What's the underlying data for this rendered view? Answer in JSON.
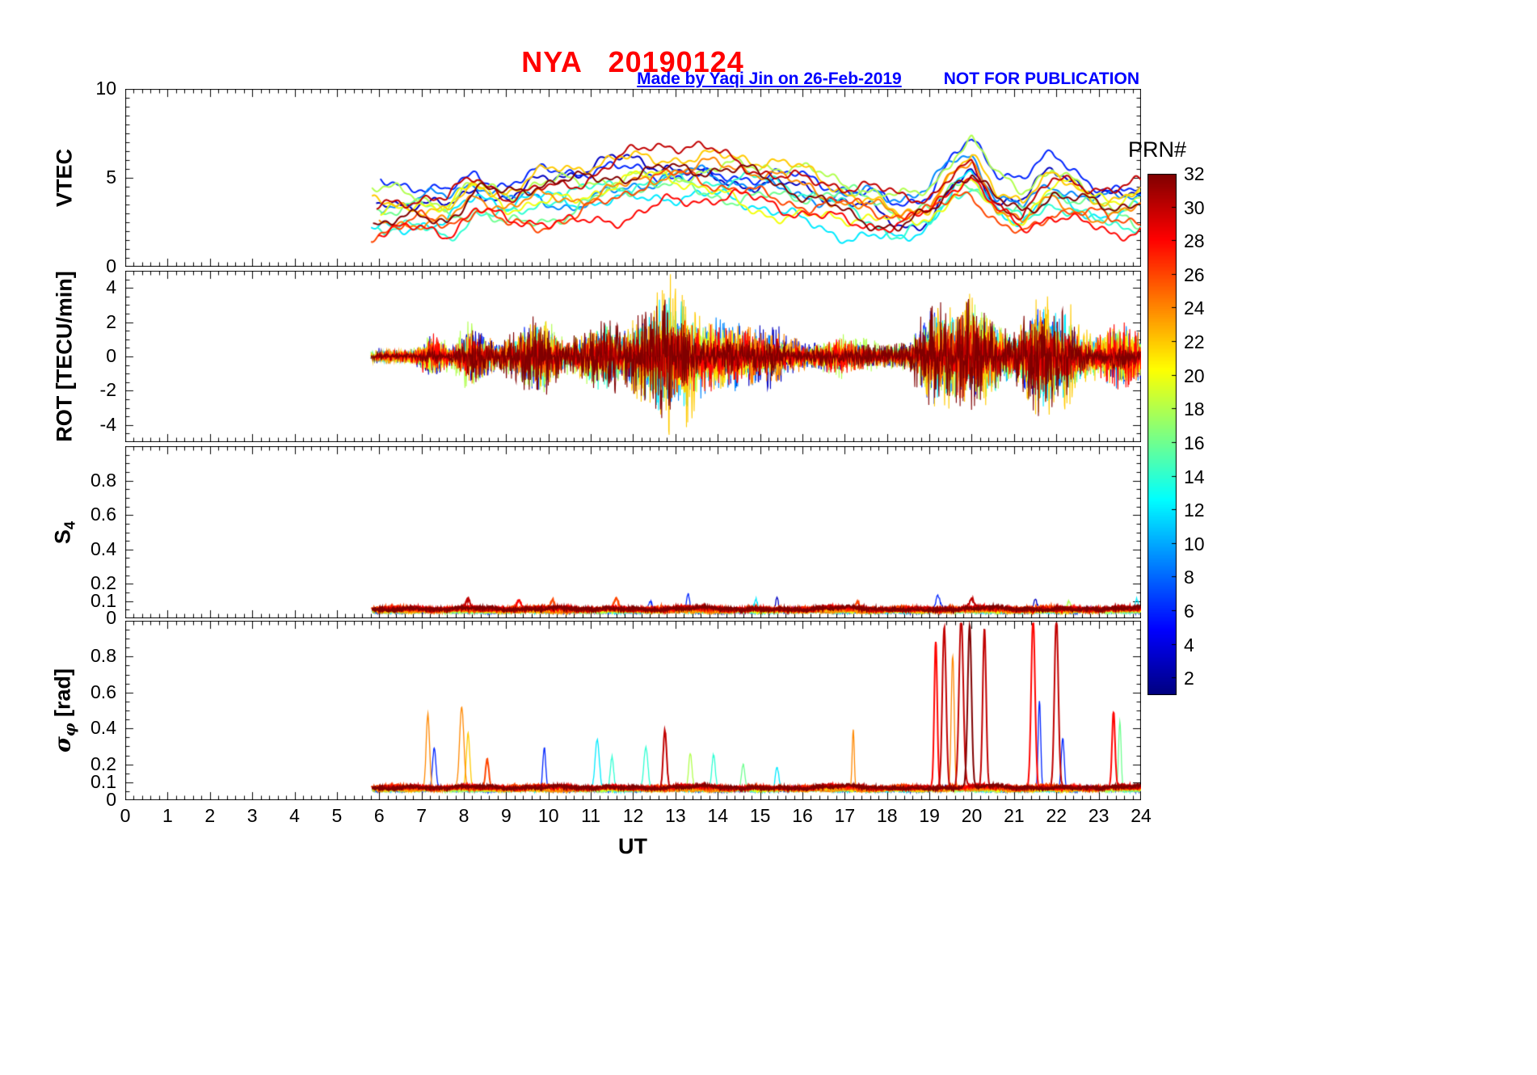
{
  "figure": {
    "title": "NYA   20190124",
    "credit": "Made by Yaqi Jin on 26-Feb-2019",
    "watermark": "NOT FOR PUBLICATION",
    "title_color": "#FF0000",
    "annotation_color": "#0000FF",
    "background_color": "#FFFFFF"
  },
  "xaxis": {
    "label": "UT",
    "min": 0,
    "max": 24,
    "ticks": [
      0,
      1,
      2,
      3,
      4,
      5,
      6,
      7,
      8,
      9,
      10,
      11,
      12,
      13,
      14,
      15,
      16,
      17,
      18,
      19,
      20,
      21,
      22,
      23,
      24
    ]
  },
  "colorbar": {
    "label": "PRN#",
    "colormap": "jet",
    "min": 1,
    "max": 32,
    "ticks": [
      2,
      4,
      6,
      8,
      10,
      12,
      14,
      16,
      18,
      20,
      22,
      24,
      26,
      28,
      30,
      32
    ]
  },
  "series_prns": [
    3,
    6,
    9,
    12,
    14,
    16,
    18,
    20,
    22,
    24,
    26,
    28,
    30,
    32
  ],
  "data_time_span": [
    5.8,
    24
  ],
  "chart_data": [
    {
      "panel": "VTEC",
      "type": "line",
      "ylabel": "VTEC",
      "ylim": [
        0,
        10
      ],
      "yticks": [
        0,
        5,
        10
      ],
      "x_span": [
        5.8,
        24
      ],
      "series_spread": 1.1,
      "mean_envelope": [
        [
          5.8,
          2.9
        ],
        [
          7,
          3.3
        ],
        [
          7.6,
          3.0
        ],
        [
          8.3,
          4.1
        ],
        [
          9,
          3.4
        ],
        [
          9.8,
          3.8
        ],
        [
          10.6,
          4.0
        ],
        [
          11.4,
          4.6
        ],
        [
          12.2,
          4.9
        ],
        [
          12.8,
          5.1
        ],
        [
          13.5,
          4.9
        ],
        [
          14.3,
          4.6
        ],
        [
          15.2,
          4.3
        ],
        [
          16,
          3.9
        ],
        [
          16.8,
          3.6
        ],
        [
          17.5,
          3.3
        ],
        [
          18.3,
          2.7
        ],
        [
          19,
          3.2
        ],
        [
          19.6,
          4.8
        ],
        [
          20,
          5.3
        ],
        [
          20.6,
          3.5
        ],
        [
          21.2,
          3.1
        ],
        [
          21.9,
          4.4
        ],
        [
          22.6,
          3.9
        ],
        [
          23.3,
          3.3
        ],
        [
          24,
          3.4
        ]
      ]
    },
    {
      "panel": "ROT",
      "type": "line",
      "ylabel": "ROT [TECU/min]",
      "ylim": [
        -5,
        5
      ],
      "yticks": [
        -4,
        -2,
        0,
        2,
        4
      ],
      "x_span": [
        5.8,
        24
      ],
      "amplitude_envelope": [
        [
          5.8,
          0.15
        ],
        [
          6.8,
          0.2
        ],
        [
          7.25,
          0.55
        ],
        [
          7.7,
          0.25
        ],
        [
          8.2,
          0.7
        ],
        [
          8.8,
          0.3
        ],
        [
          9.9,
          1.05
        ],
        [
          10.4,
          0.35
        ],
        [
          11.2,
          0.85
        ],
        [
          11.9,
          0.6
        ],
        [
          12.6,
          1.4
        ],
        [
          13.2,
          1.3
        ],
        [
          13.9,
          0.85
        ],
        [
          14.7,
          0.75
        ],
        [
          15.5,
          0.5
        ],
        [
          16.2,
          0.3
        ],
        [
          17,
          0.5
        ],
        [
          17.8,
          0.25
        ],
        [
          18.5,
          0.3
        ],
        [
          19.2,
          1.25
        ],
        [
          19.8,
          1.35
        ],
        [
          20.4,
          1.1
        ],
        [
          21,
          0.5
        ],
        [
          21.6,
          1.45
        ],
        [
          22.1,
          1.1
        ],
        [
          22.7,
          0.5
        ],
        [
          23.4,
          0.8
        ],
        [
          24,
          0.6
        ]
      ]
    },
    {
      "panel": "S4",
      "type": "line",
      "ylabel": "S_4",
      "ylabel_parts": {
        "main": "S",
        "sub": "4",
        "rest": ""
      },
      "ylim": [
        0,
        1
      ],
      "yticks": [
        0,
        0.1,
        0.2,
        0.4,
        0.6,
        0.8
      ],
      "x_span": [
        5.8,
        24
      ],
      "baseline": 0.04,
      "spikes": [
        {
          "t": 8.1,
          "h": 0.05,
          "prn": 30,
          "w": 0.05
        },
        {
          "t": 9.3,
          "h": 0.06,
          "prn": 28,
          "w": 0.05
        },
        {
          "t": 10.1,
          "h": 0.05,
          "prn": 26,
          "w": 0.04
        },
        {
          "t": 11.6,
          "h": 0.06,
          "prn": 26,
          "w": 0.05
        },
        {
          "t": 12.4,
          "h": 0.05,
          "prn": 6,
          "w": 0.04
        },
        {
          "t": 13.3,
          "h": 0.1,
          "prn": 6,
          "w": 0.035
        },
        {
          "t": 14.9,
          "h": 0.07,
          "prn": 12,
          "w": 0.04
        },
        {
          "t": 15.4,
          "h": 0.08,
          "prn": 3,
          "w": 0.035
        },
        {
          "t": 17.3,
          "h": 0.05,
          "prn": 26,
          "w": 0.04
        },
        {
          "t": 19.2,
          "h": 0.08,
          "prn": 6,
          "w": 0.05
        },
        {
          "t": 20.0,
          "h": 0.05,
          "prn": 30,
          "w": 0.05
        },
        {
          "t": 21.5,
          "h": 0.07,
          "prn": 3,
          "w": 0.04
        },
        {
          "t": 22.3,
          "h": 0.05,
          "prn": 18,
          "w": 0.04
        },
        {
          "t": 23.9,
          "h": 0.07,
          "prn": 12,
          "w": 0.04
        }
      ]
    },
    {
      "panel": "sigma_phi",
      "type": "line",
      "ylabel": "σ_φ [rad]",
      "ylabel_parts": {
        "main": "σ",
        "sub": "φ",
        "rest": " [rad]"
      },
      "ylim": [
        0,
        1
      ],
      "yticks": [
        0,
        0.1,
        0.2,
        0.4,
        0.6,
        0.8
      ],
      "x_span": [
        5.8,
        24
      ],
      "baseline": 0.06,
      "spikes": [
        {
          "t": 7.15,
          "h": 0.42,
          "prn": 24,
          "w": 0.04
        },
        {
          "t": 7.3,
          "h": 0.22,
          "prn": 6,
          "w": 0.04
        },
        {
          "t": 7.95,
          "h": 0.45,
          "prn": 24,
          "w": 0.05
        },
        {
          "t": 8.1,
          "h": 0.3,
          "prn": 22,
          "w": 0.04
        },
        {
          "t": 8.55,
          "h": 0.16,
          "prn": 26,
          "w": 0.04
        },
        {
          "t": 9.9,
          "h": 0.24,
          "prn": 6,
          "w": 0.035
        },
        {
          "t": 11.15,
          "h": 0.27,
          "prn": 12,
          "w": 0.05
        },
        {
          "t": 11.5,
          "h": 0.18,
          "prn": 14,
          "w": 0.04
        },
        {
          "t": 12.3,
          "h": 0.24,
          "prn": 14,
          "w": 0.05
        },
        {
          "t": 12.75,
          "h": 0.32,
          "prn": 30,
          "w": 0.04
        },
        {
          "t": 13.35,
          "h": 0.2,
          "prn": 18,
          "w": 0.04
        },
        {
          "t": 13.9,
          "h": 0.18,
          "prn": 14,
          "w": 0.04
        },
        {
          "t": 14.6,
          "h": 0.14,
          "prn": 16,
          "w": 0.04
        },
        {
          "t": 15.4,
          "h": 0.12,
          "prn": 12,
          "w": 0.04
        },
        {
          "t": 17.2,
          "h": 0.33,
          "prn": 24,
          "w": 0.025
        },
        {
          "t": 19.15,
          "h": 0.82,
          "prn": 28,
          "w": 0.035
        },
        {
          "t": 19.35,
          "h": 0.9,
          "prn": 30,
          "w": 0.045
        },
        {
          "t": 19.55,
          "h": 0.75,
          "prn": 24,
          "w": 0.035
        },
        {
          "t": 19.75,
          "h": 0.95,
          "prn": 30,
          "w": 0.05
        },
        {
          "t": 19.95,
          "h": 0.9,
          "prn": 32,
          "w": 0.045
        },
        {
          "t": 20.3,
          "h": 0.88,
          "prn": 30,
          "w": 0.04
        },
        {
          "t": 21.45,
          "h": 0.95,
          "prn": 28,
          "w": 0.045
        },
        {
          "t": 21.6,
          "h": 0.5,
          "prn": 6,
          "w": 0.03
        },
        {
          "t": 22.0,
          "h": 0.95,
          "prn": 30,
          "w": 0.045
        },
        {
          "t": 22.15,
          "h": 0.28,
          "prn": 6,
          "w": 0.035
        },
        {
          "t": 23.35,
          "h": 0.42,
          "prn": 28,
          "w": 0.035
        },
        {
          "t": 23.5,
          "h": 0.38,
          "prn": 16,
          "w": 0.03
        }
      ]
    }
  ]
}
